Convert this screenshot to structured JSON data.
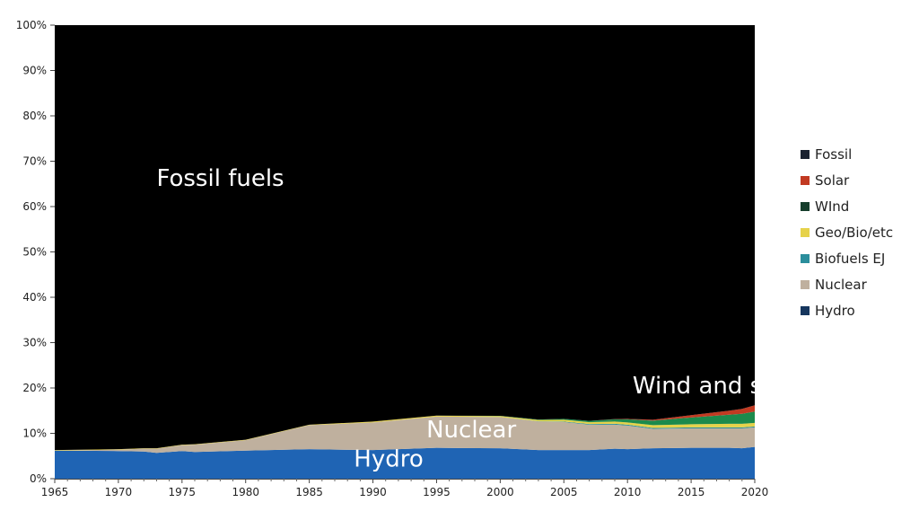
{
  "chart_data": {
    "type": "area",
    "stacked": true,
    "normalized_percent": true,
    "x": [
      1965,
      1970,
      1972,
      1973,
      1975,
      1976,
      1980,
      1985,
      1990,
      1995,
      2000,
      2003,
      2005,
      2007,
      2009,
      2010,
      2012,
      2015,
      2018,
      2019,
      2020
    ],
    "series": [
      {
        "name": "Hydro",
        "color": "#1f64b4",
        "values": [
          6.2,
          6.1,
          6.0,
          5.7,
          6.1,
          5.9,
          6.2,
          6.5,
          6.3,
          6.8,
          6.7,
          6.3,
          6.3,
          6.3,
          6.6,
          6.5,
          6.7,
          6.8,
          6.8,
          6.7,
          7.0
        ]
      },
      {
        "name": "Nuclear",
        "color": "#bfb09e",
        "values": [
          0.0,
          0.3,
          0.6,
          0.9,
          1.3,
          1.6,
          2.3,
          5.3,
          6.1,
          6.9,
          6.9,
          6.3,
          6.2,
          5.6,
          5.3,
          5.2,
          4.3,
          4.3,
          4.3,
          4.4,
          4.3
        ]
      },
      {
        "name": "Biofuels EJ",
        "color": "#2b8e9c",
        "values": [
          0.0,
          0.0,
          0.0,
          0.0,
          0.0,
          0.0,
          0.0,
          0.0,
          0.0,
          0.0,
          0.0,
          0.05,
          0.1,
          0.15,
          0.2,
          0.2,
          0.2,
          0.2,
          0.2,
          0.2,
          0.2
        ]
      },
      {
        "name": "Geo/Bio/etc",
        "color": "#e6d24a",
        "values": [
          0.1,
          0.1,
          0.1,
          0.1,
          0.1,
          0.1,
          0.1,
          0.1,
          0.2,
          0.2,
          0.2,
          0.3,
          0.4,
          0.4,
          0.5,
          0.5,
          0.6,
          0.7,
          0.8,
          0.8,
          0.8
        ]
      },
      {
        "name": "Wind",
        "color": "#1c8a4c",
        "values": [
          0.0,
          0.0,
          0.0,
          0.0,
          0.0,
          0.0,
          0.0,
          0.0,
          0.0,
          0.0,
          0.05,
          0.1,
          0.2,
          0.3,
          0.5,
          0.7,
          1.0,
          1.5,
          2.0,
          2.2,
          2.5
        ]
      },
      {
        "name": "Solar",
        "color": "#c23a22",
        "values": [
          0.0,
          0.0,
          0.0,
          0.0,
          0.0,
          0.0,
          0.0,
          0.0,
          0.0,
          0.0,
          0.0,
          0.0,
          0.0,
          0.0,
          0.05,
          0.1,
          0.2,
          0.5,
          0.9,
          1.1,
          1.4
        ]
      },
      {
        "name": "Fossil",
        "color": "#000000",
        "values": [
          93.7,
          93.5,
          93.3,
          93.3,
          92.5,
          92.4,
          91.4,
          88.1,
          87.4,
          86.1,
          86.15,
          86.95,
          86.8,
          87.25,
          86.85,
          86.8,
          87.0,
          86.0,
          85.0,
          84.6,
          83.8
        ]
      }
    ],
    "ylim": [
      0,
      100
    ],
    "xlim": [
      1965,
      2020
    ],
    "y_ticks": [
      "0%",
      "10%",
      "20%",
      "30%",
      "40%",
      "50%",
      "60%",
      "70%",
      "80%",
      "90%",
      "100%"
    ],
    "x_ticks": [
      "1965",
      "1970",
      "1975",
      "1980",
      "1985",
      "1990",
      "1995",
      "2000",
      "2005",
      "2010",
      "2015",
      "2020"
    ],
    "legend": {
      "position": "right",
      "entries": [
        {
          "label": "Fossil",
          "color": "#1a2230"
        },
        {
          "label": "Solar",
          "color": "#c23a22"
        },
        {
          "label": "WInd",
          "color": "#163e2c"
        },
        {
          "label": "Geo/Bio/etc",
          "color": "#e6d24a"
        },
        {
          "label": "Biofuels EJ",
          "color": "#2b8e9c"
        },
        {
          "label": "Nuclear",
          "color": "#bfb09e"
        },
        {
          "label": "Hydro",
          "color": "#16365e"
        }
      ]
    },
    "annotations": [
      {
        "text": "Fossil fuels",
        "x": 1973,
        "y": 64.6
      },
      {
        "text": "Wind and solar",
        "x": 2010.4,
        "y": 18.8
      },
      {
        "text": "Nuclear",
        "x": 1994.2,
        "y": 9.1
      },
      {
        "text": "Hydro",
        "x": 1988.5,
        "y": 2.7
      }
    ]
  }
}
